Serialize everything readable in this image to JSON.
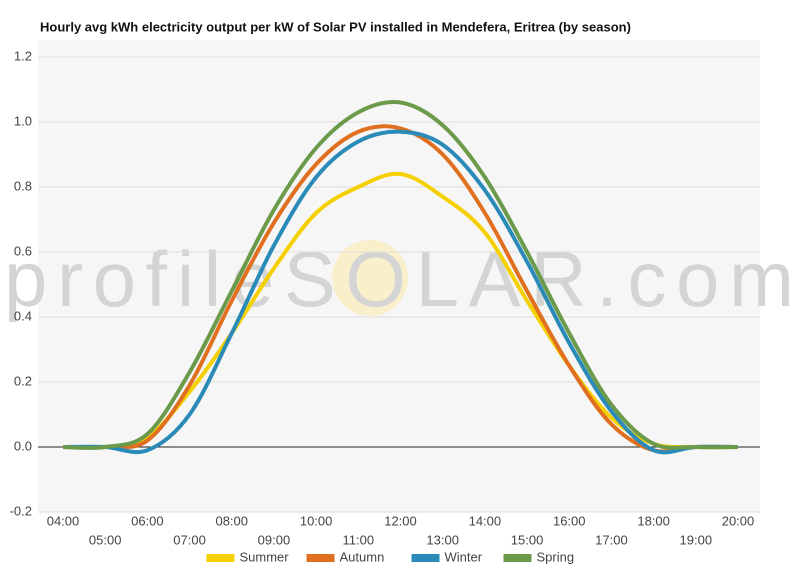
{
  "chart_data": {
    "type": "line",
    "title": "Hourly avg kWh electricity output per kW of Solar PV installed in Mendefera, Eritrea (by season)",
    "watermark": "profileSOLAR.com",
    "categories": [
      "04:00",
      "05:00",
      "06:00",
      "07:00",
      "08:00",
      "09:00",
      "10:00",
      "11:00",
      "12:00",
      "13:00",
      "14:00",
      "15:00",
      "16:00",
      "17:00",
      "18:00",
      "19:00",
      "20:00"
    ],
    "series": [
      {
        "name": "Summer",
        "color": "#f5d000",
        "values": [
          0,
          0,
          0.03,
          0.17,
          0.35,
          0.55,
          0.72,
          0.8,
          0.84,
          0.77,
          0.66,
          0.45,
          0.25,
          0.09,
          0.01,
          0,
          0
        ]
      },
      {
        "name": "Autumn",
        "color": "#e07020",
        "values": [
          0,
          0,
          0.02,
          0.19,
          0.45,
          0.69,
          0.87,
          0.97,
          0.98,
          0.9,
          0.72,
          0.48,
          0.25,
          0.07,
          -0.01,
          0,
          0
        ]
      },
      {
        "name": "Winter",
        "color": "#2a8ab8",
        "values": [
          0,
          0,
          -0.01,
          0.1,
          0.35,
          0.62,
          0.83,
          0.94,
          0.97,
          0.93,
          0.79,
          0.57,
          0.32,
          0.11,
          -0.01,
          0,
          0
        ]
      },
      {
        "name": "Spring",
        "color": "#6a9a4a",
        "values": [
          0,
          0,
          0.04,
          0.23,
          0.48,
          0.73,
          0.92,
          1.03,
          1.06,
          0.99,
          0.83,
          0.6,
          0.35,
          0.13,
          0.01,
          0,
          0
        ]
      }
    ],
    "ylim": [
      -0.2,
      1.2
    ],
    "yticks": [
      -0.2,
      {
        "value": 0,
        "label": "0.0"
      },
      0.2,
      0.4,
      0.6,
      0.8,
      {
        "value": 1,
        "label": "1.0"
      },
      1.2
    ],
    "grid": true,
    "legend": "bottom"
  }
}
